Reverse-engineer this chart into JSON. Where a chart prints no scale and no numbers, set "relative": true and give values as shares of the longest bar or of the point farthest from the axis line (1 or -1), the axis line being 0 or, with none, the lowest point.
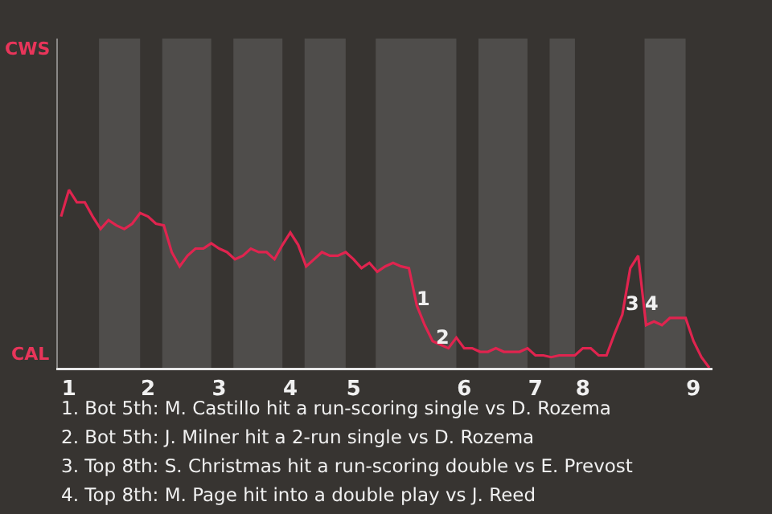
{
  "chart_data": {
    "type": "line",
    "relative": true,
    "categories": [
      null,
      "1",
      null,
      null,
      null,
      null,
      null,
      null,
      null,
      null,
      null,
      "2",
      null,
      null,
      null,
      null,
      null,
      null,
      null,
      null,
      "3",
      null,
      null,
      null,
      null,
      null,
      null,
      null,
      null,
      "4",
      null,
      null,
      null,
      null,
      null,
      null,
      null,
      "5",
      null,
      null,
      null,
      null,
      null,
      null,
      null,
      null,
      null,
      null,
      null,
      null,
      null,
      "6",
      null,
      null,
      null,
      null,
      null,
      null,
      null,
      null,
      "7",
      null,
      null,
      null,
      null,
      null,
      "8",
      null,
      null,
      null,
      null,
      null,
      null,
      null,
      null,
      null,
      null,
      null,
      null,
      null,
      "9",
      null,
      null
    ],
    "series": [
      {
        "color": "#e0244f",
        "values": [
          0.85,
          1,
          0.93,
          0.93,
          0.85,
          0.78,
          0.83,
          0.8,
          0.78,
          0.81,
          0.87,
          0.85,
          0.81,
          0.8,
          0.65,
          0.57,
          0.63,
          0.67,
          0.67,
          0.7,
          0.67,
          0.65,
          0.61,
          0.63,
          0.67,
          0.65,
          0.65,
          0.61,
          0.69,
          0.76,
          0.69,
          0.57,
          0.61,
          0.65,
          0.63,
          0.63,
          0.65,
          0.61,
          0.56,
          0.59,
          0.54,
          0.57,
          0.59,
          0.57,
          0.56,
          0.35,
          0.24,
          0.15,
          0.13,
          0.11,
          0.17,
          0.11,
          0.11,
          0.09,
          0.09,
          0.11,
          0.09,
          0.09,
          0.09,
          0.11,
          0.07,
          0.07,
          0.06,
          0.07,
          0.07,
          0.07,
          0.11,
          0.11,
          0.07,
          0.07,
          0.19,
          0.3,
          0.56,
          0.63,
          0.24,
          0.26,
          0.24,
          0.28,
          0.28,
          0.28,
          0.15,
          0.06,
          0
        ]
      }
    ],
    "marker": "none",
    "line_style": "solid",
    "annotations": [
      "CWS",
      "CAL",
      "1",
      "2",
      "3",
      "4",
      "1. Bot 5th: M. Castillo hit a run-scoring single vs D. Rozema",
      "2. Bot 5th: J. Milner hit a 2-run single vs D. Rozema",
      "3. Top 8th: S. Christmas hit a run-scoring double vs E. Prevost",
      "4. Top 8th: M. Page hit into a double play vs J. Reed"
    ]
  }
}
